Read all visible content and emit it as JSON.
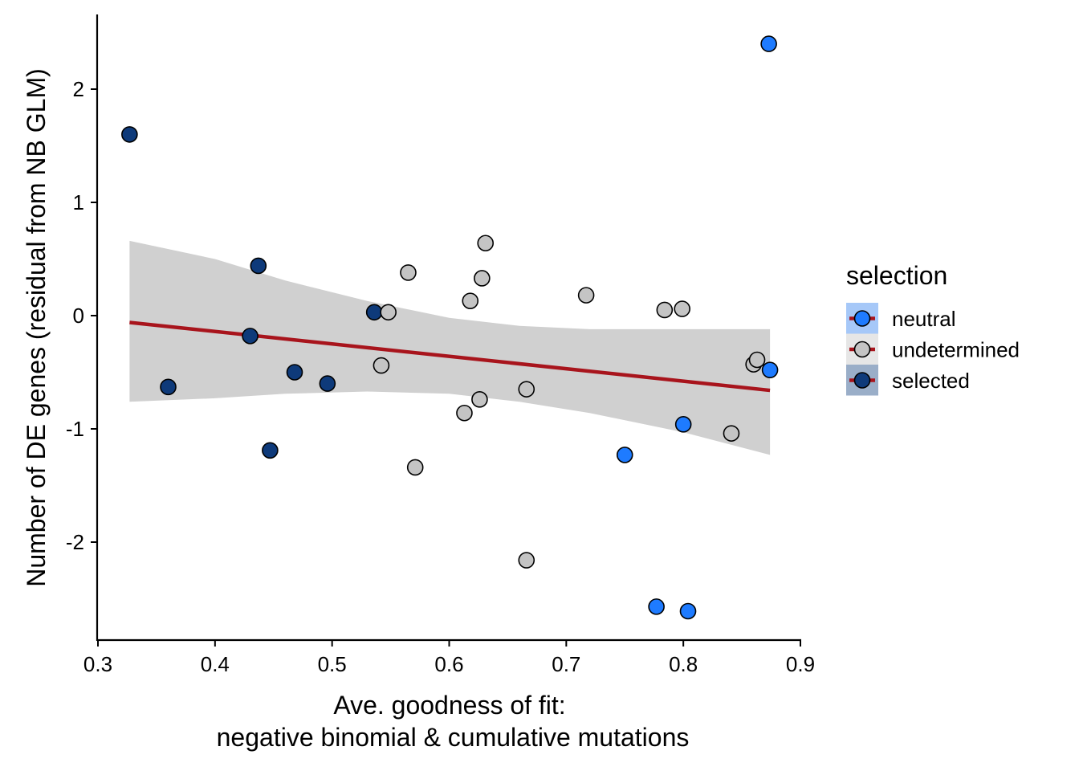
{
  "chart_data": {
    "type": "scatter",
    "title": "",
    "xlabel": [
      "Ave. goodness of fit:",
      "negative binomial & cumulative mutations"
    ],
    "ylabel": "Number of DE genes (residual from NB GLM)",
    "xlim": [
      0.3,
      0.9
    ],
    "ylim": [
      -2.8,
      2.66
    ],
    "x_ticks": [
      0.3,
      0.4,
      0.5,
      0.6,
      0.7,
      0.8,
      0.9
    ],
    "x_tick_labels": [
      "0.3",
      "0.4",
      "0.5",
      "0.6",
      "0.7",
      "0.8",
      "0.9"
    ],
    "y_ticks": [
      -2,
      -1,
      0,
      1,
      2
    ],
    "y_tick_labels": [
      "-2",
      "-1",
      "0",
      "1",
      "2"
    ],
    "grid": false,
    "legend": {
      "title": "selection",
      "placement": "right",
      "entries": [
        {
          "label": "neutral",
          "color": "#1E7BFF",
          "key_bg": "#A6C8F8"
        },
        {
          "label": "undetermined",
          "color": "#C4C4C4",
          "key_bg": "#E6E6E6"
        },
        {
          "label": "selected",
          "color": "#0E3A7A",
          "key_bg": "#9AAEC8"
        }
      ]
    },
    "series": [
      {
        "name": "selected",
        "color": "#0E3A7A",
        "points": [
          [
            0.327,
            1.6
          ],
          [
            0.36,
            -0.63
          ],
          [
            0.43,
            -0.18
          ],
          [
            0.437,
            0.44
          ],
          [
            0.447,
            -1.19
          ],
          [
            0.468,
            -0.5
          ],
          [
            0.496,
            -0.6
          ],
          [
            0.536,
            0.03
          ]
        ]
      },
      {
        "name": "undetermined",
        "color": "#C4C4C4",
        "points": [
          [
            0.548,
            0.03
          ],
          [
            0.542,
            -0.44
          ],
          [
            0.565,
            0.38
          ],
          [
            0.571,
            -1.34
          ],
          [
            0.613,
            -0.86
          ],
          [
            0.618,
            0.13
          ],
          [
            0.626,
            -0.74
          ],
          [
            0.628,
            0.33
          ],
          [
            0.631,
            0.64
          ],
          [
            0.666,
            -0.65
          ],
          [
            0.666,
            -2.16
          ],
          [
            0.717,
            0.18
          ],
          [
            0.784,
            0.05
          ],
          [
            0.799,
            0.06
          ],
          [
            0.841,
            -1.04
          ],
          [
            0.86,
            -0.43
          ],
          [
            0.863,
            -0.39
          ]
        ]
      },
      {
        "name": "neutral",
        "color": "#1E7BFF",
        "points": [
          [
            0.873,
            2.4
          ],
          [
            0.874,
            -0.48
          ],
          [
            0.8,
            -0.96
          ],
          [
            0.75,
            -1.23
          ],
          [
            0.777,
            -2.57
          ],
          [
            0.804,
            -2.61
          ]
        ]
      }
    ],
    "trend": {
      "type": "linear fit with 95% CI",
      "color": "#A8141C",
      "band_color": "#D0D0D0",
      "x_range": [
        0.327,
        0.874
      ],
      "line": [
        [
          0.327,
          -0.06
        ],
        [
          0.874,
          -0.66
        ]
      ],
      "ci_upper": [
        [
          0.327,
          0.66
        ],
        [
          0.4,
          0.5
        ],
        [
          0.46,
          0.31
        ],
        [
          0.53,
          0.13
        ],
        [
          0.6,
          -0.02
        ],
        [
          0.66,
          -0.09
        ],
        [
          0.72,
          -0.12
        ],
        [
          0.8,
          -0.12
        ],
        [
          0.874,
          -0.12
        ]
      ],
      "ci_lower": [
        [
          0.327,
          -0.76
        ],
        [
          0.4,
          -0.73
        ],
        [
          0.46,
          -0.69
        ],
        [
          0.53,
          -0.67
        ],
        [
          0.6,
          -0.69
        ],
        [
          0.66,
          -0.76
        ],
        [
          0.72,
          -0.86
        ],
        [
          0.8,
          -1.03
        ],
        [
          0.874,
          -1.23
        ]
      ]
    }
  }
}
